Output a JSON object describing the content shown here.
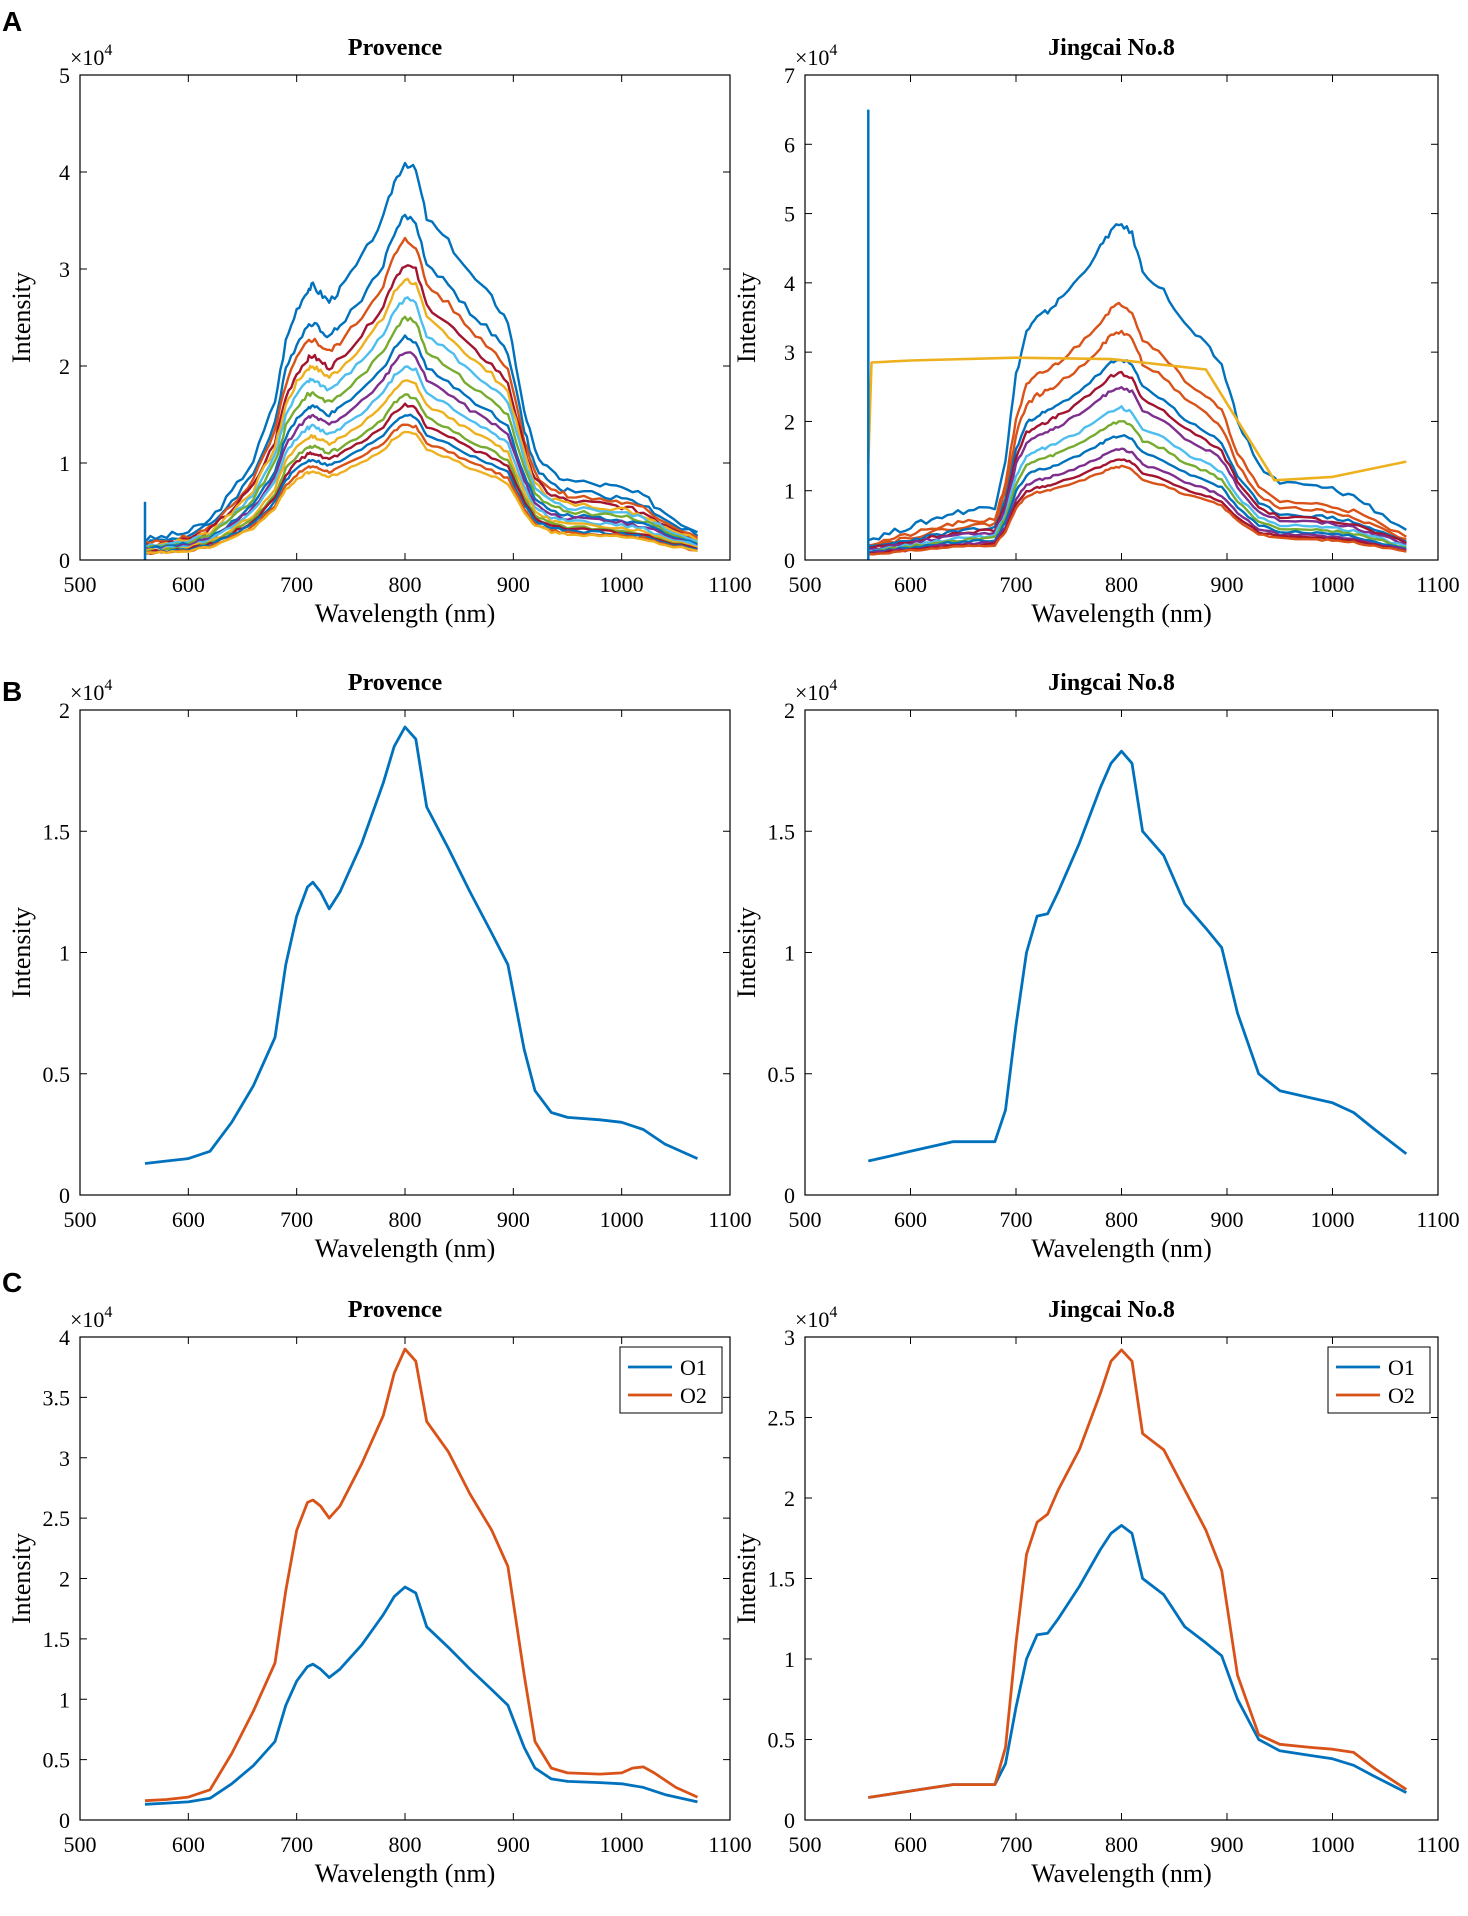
{
  "panels": [
    {
      "letter": "A"
    },
    {
      "letter": "B"
    },
    {
      "letter": "C"
    }
  ],
  "common": {
    "xlabel": "Wavelength (nm)",
    "ylabel": "Intensity",
    "exponent": "×10",
    "exponent_power": "4",
    "xticks": [
      "500",
      "600",
      "700",
      "800",
      "900",
      "1000",
      "1100"
    ]
  },
  "colors": {
    "blue": "#0072BD",
    "orange": "#D95319",
    "yellow": "#EDB120",
    "purple": "#7E2F8E",
    "green": "#77AC30",
    "cyan": "#4DBEEE",
    "red": "#A2142F"
  },
  "chart_data": [
    {
      "id": "A-provence",
      "panel": "A",
      "type": "line",
      "title": "Provence",
      "xlabel": "Wavelength (nm)",
      "ylabel": "Intensity",
      "xlim": [
        500,
        1100
      ],
      "ylim": [
        0,
        50000
      ],
      "yticks": [
        "0",
        "1",
        "2",
        "3",
        "4",
        "5"
      ],
      "multiplier": "×10^4",
      "note": "Stack of about 20 raw spectra of similar shape, peak intensities from about 13000 to 41000",
      "series": [
        {
          "name": "spectrum-1",
          "peak": 41000,
          "color": "blue"
        },
        {
          "name": "spectrum-2",
          "peak": 35500,
          "color": "blue"
        },
        {
          "name": "spectrum-3",
          "peak": 33000,
          "color": "orange"
        },
        {
          "name": "spectrum-4",
          "peak": 30500,
          "color": "red"
        },
        {
          "name": "spectrum-5",
          "peak": 29000,
          "color": "yellow"
        },
        {
          "name": "spectrum-6",
          "peak": 27000,
          "color": "cyan"
        },
        {
          "name": "spectrum-7",
          "peak": 25000,
          "color": "green"
        },
        {
          "name": "spectrum-8",
          "peak": 23000,
          "color": "blue"
        },
        {
          "name": "spectrum-9",
          "peak": 21500,
          "color": "purple"
        },
        {
          "name": "spectrum-10",
          "peak": 20000,
          "color": "cyan"
        },
        {
          "name": "spectrum-11",
          "peak": 18500,
          "color": "yellow"
        },
        {
          "name": "spectrum-12",
          "peak": 17000,
          "color": "green"
        },
        {
          "name": "spectrum-13",
          "peak": 16000,
          "color": "red"
        },
        {
          "name": "spectrum-14",
          "peak": 15000,
          "color": "blue"
        },
        {
          "name": "spectrum-15",
          "peak": 14000,
          "color": "orange"
        },
        {
          "name": "spectrum-16",
          "peak": 13200,
          "color": "yellow"
        }
      ],
      "artifact": {
        "x": 560,
        "y": 6000,
        "color": "blue"
      }
    },
    {
      "id": "A-jingcai",
      "panel": "A",
      "type": "line",
      "title": "Jingcai No.8",
      "xlabel": "Wavelength (nm)",
      "ylabel": "Intensity",
      "xlim": [
        500,
        1100
      ],
      "ylim": [
        0,
        70000
      ],
      "yticks": [
        "0",
        "1",
        "2",
        "3",
        "4",
        "5",
        "6",
        "7"
      ],
      "multiplier": "×10^4",
      "note": "Stack of raw spectra with one anomalous flat yellow trace and a spike at 560 nm",
      "series": [
        {
          "name": "spectrum-1",
          "peak": 48500,
          "color": "blue"
        },
        {
          "name": "spectrum-2",
          "peak": 37000,
          "color": "orange"
        },
        {
          "name": "spectrum-3",
          "peak": 33000,
          "color": "orange"
        },
        {
          "name": "spectrum-4",
          "peak": 29000,
          "color": "blue"
        },
        {
          "name": "spectrum-5",
          "peak": 27000,
          "color": "red"
        },
        {
          "name": "spectrum-6",
          "peak": 25000,
          "color": "purple"
        },
        {
          "name": "spectrum-7",
          "peak": 22000,
          "color": "cyan"
        },
        {
          "name": "spectrum-8",
          "peak": 20000,
          "color": "green"
        },
        {
          "name": "spectrum-9",
          "peak": 18000,
          "color": "blue"
        },
        {
          "name": "spectrum-10",
          "peak": 16000,
          "color": "purple"
        },
        {
          "name": "spectrum-11",
          "peak": 14500,
          "color": "red"
        },
        {
          "name": "spectrum-12",
          "peak": 13500,
          "color": "orange"
        }
      ],
      "flat_trace": {
        "color": "yellow",
        "x": [
          560,
          563,
          600,
          700,
          790,
          880,
          945,
          1000,
          1070
        ],
        "y": [
          14000,
          28500,
          28800,
          29200,
          29000,
          27500,
          11500,
          12000,
          14200
        ]
      },
      "artifact": {
        "x": 560,
        "y": 65000,
        "color": "blue"
      }
    },
    {
      "id": "B-provence",
      "panel": "B",
      "type": "line",
      "title": "Provence",
      "xlabel": "Wavelength (nm)",
      "ylabel": "Intensity",
      "xlim": [
        500,
        1100
      ],
      "ylim": [
        0,
        20000
      ],
      "yticks": [
        "0",
        "0.5",
        "1",
        "1.5",
        "2"
      ],
      "multiplier": "×10^4",
      "series": [
        {
          "name": "mean",
          "color": "blue",
          "x": [
            560,
            580,
            600,
            620,
            640,
            660,
            680,
            690,
            700,
            710,
            715,
            722,
            730,
            740,
            760,
            780,
            790,
            800,
            810,
            820,
            840,
            860,
            880,
            895,
            910,
            920,
            935,
            950,
            980,
            1000,
            1020,
            1040,
            1070
          ],
          "y": [
            1300,
            1400,
            1500,
            1800,
            3000,
            4500,
            6500,
            9500,
            11500,
            12700,
            12900,
            12500,
            11800,
            12500,
            14500,
            17000,
            18500,
            19300,
            18800,
            16000,
            14300,
            12500,
            10800,
            9500,
            6000,
            4300,
            3400,
            3200,
            3100,
            3000,
            2700,
            2100,
            1500
          ]
        }
      ]
    },
    {
      "id": "B-jingcai",
      "panel": "B",
      "type": "line",
      "title": "Jingcai No.8",
      "xlabel": "Wavelength (nm)",
      "ylabel": "Intensity",
      "xlim": [
        500,
        1100
      ],
      "ylim": [
        0,
        20000
      ],
      "yticks": [
        "0",
        "0.5",
        "1",
        "1.5",
        "2"
      ],
      "multiplier": "×10^4",
      "series": [
        {
          "name": "mean",
          "color": "blue",
          "x": [
            560,
            580,
            600,
            620,
            640,
            660,
            680,
            690,
            700,
            710,
            720,
            730,
            740,
            760,
            780,
            790,
            800,
            810,
            820,
            840,
            860,
            880,
            895,
            910,
            930,
            950,
            980,
            1000,
            1020,
            1040,
            1070
          ],
          "y": [
            1400,
            1600,
            1800,
            2000,
            2200,
            2200,
            2200,
            3500,
            7000,
            10000,
            11500,
            11600,
            12500,
            14500,
            16800,
            17800,
            18300,
            17800,
            15000,
            14000,
            12000,
            11000,
            10200,
            7500,
            5000,
            4300,
            4000,
            3800,
            3400,
            2700,
            1700
          ]
        }
      ]
    },
    {
      "id": "C-provence",
      "panel": "C",
      "type": "line",
      "title": "Provence",
      "xlabel": "Wavelength (nm)",
      "ylabel": "Intensity",
      "xlim": [
        500,
        1100
      ],
      "ylim": [
        0,
        40000
      ],
      "yticks": [
        "0",
        "0.5",
        "1",
        "1.5",
        "2",
        "2.5",
        "3",
        "3.5",
        "4"
      ],
      "multiplier": "×10^4",
      "legend": [
        "O1",
        "O2"
      ],
      "legend_position": "top-right",
      "series": [
        {
          "name": "O1",
          "color": "blue",
          "x": [
            560,
            580,
            600,
            620,
            640,
            660,
            680,
            690,
            700,
            710,
            715,
            722,
            730,
            740,
            760,
            780,
            790,
            800,
            810,
            820,
            840,
            860,
            880,
            895,
            910,
            920,
            935,
            950,
            980,
            1000,
            1020,
            1040,
            1070
          ],
          "y": [
            1300,
            1400,
            1500,
            1800,
            3000,
            4500,
            6500,
            9500,
            11500,
            12700,
            12900,
            12500,
            11800,
            12500,
            14500,
            17000,
            18500,
            19300,
            18800,
            16000,
            14300,
            12500,
            10800,
            9500,
            6000,
            4300,
            3400,
            3200,
            3100,
            3000,
            2700,
            2100,
            1500
          ]
        },
        {
          "name": "O2",
          "color": "orange",
          "x": [
            560,
            580,
            600,
            620,
            640,
            660,
            680,
            690,
            700,
            710,
            715,
            722,
            730,
            740,
            760,
            780,
            790,
            800,
            810,
            820,
            840,
            860,
            880,
            895,
            910,
            920,
            935,
            950,
            980,
            1000,
            1010,
            1020,
            1030,
            1050,
            1070
          ],
          "y": [
            1600,
            1700,
            1900,
            2500,
            5500,
            9000,
            13000,
            19000,
            24000,
            26300,
            26500,
            26000,
            25000,
            26000,
            29500,
            33500,
            37000,
            39000,
            38000,
            33000,
            30500,
            27000,
            24000,
            21000,
            12000,
            6500,
            4300,
            3900,
            3800,
            3900,
            4300,
            4400,
            3900,
            2700,
            1900
          ]
        }
      ]
    },
    {
      "id": "C-jingcai",
      "panel": "C",
      "type": "line",
      "title": "Jingcai No.8",
      "xlabel": "Wavelength (nm)",
      "ylabel": "Intensity",
      "xlim": [
        500,
        1100
      ],
      "ylim": [
        0,
        30000
      ],
      "yticks": [
        "0",
        "0.5",
        "1",
        "1.5",
        "2",
        "2.5",
        "3"
      ],
      "multiplier": "×10^4",
      "legend": [
        "O1",
        "O2"
      ],
      "legend_position": "top-right",
      "series": [
        {
          "name": "O1",
          "color": "blue",
          "x": [
            560,
            580,
            600,
            620,
            640,
            660,
            680,
            690,
            700,
            710,
            720,
            730,
            740,
            760,
            780,
            790,
            800,
            810,
            820,
            840,
            860,
            880,
            895,
            910,
            930,
            950,
            980,
            1000,
            1020,
            1040,
            1070
          ],
          "y": [
            1400,
            1600,
            1800,
            2000,
            2200,
            2200,
            2200,
            3500,
            7000,
            10000,
            11500,
            11600,
            12500,
            14500,
            16800,
            17800,
            18300,
            17800,
            15000,
            14000,
            12000,
            11000,
            10200,
            7500,
            5000,
            4300,
            4000,
            3800,
            3400,
            2700,
            1700
          ]
        },
        {
          "name": "O2",
          "color": "orange",
          "x": [
            560,
            580,
            600,
            620,
            640,
            660,
            680,
            690,
            700,
            710,
            720,
            730,
            740,
            760,
            780,
            790,
            800,
            810,
            820,
            840,
            860,
            880,
            895,
            910,
            930,
            950,
            980,
            1000,
            1020,
            1040,
            1070
          ],
          "y": [
            1400,
            1600,
            1800,
            2000,
            2200,
            2200,
            2200,
            4500,
            11000,
            16500,
            18500,
            19000,
            20500,
            23000,
            26500,
            28500,
            29200,
            28500,
            24000,
            23000,
            20500,
            18000,
            15500,
            9000,
            5300,
            4700,
            4500,
            4400,
            4200,
            3200,
            1900
          ]
        }
      ]
    }
  ]
}
